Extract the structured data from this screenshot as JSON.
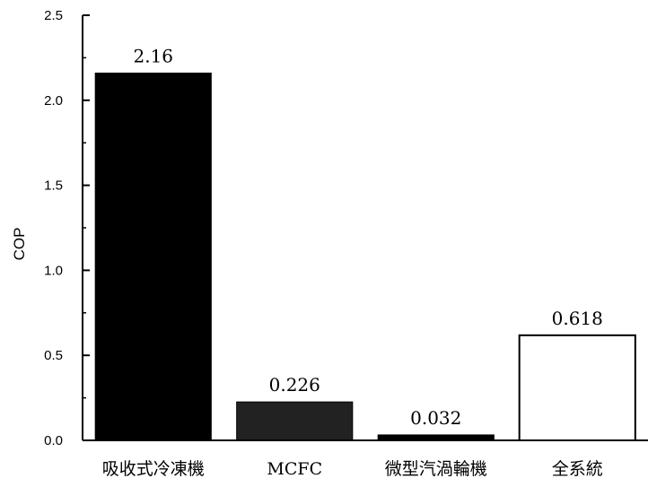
{
  "chart_data": {
    "type": "bar",
    "ylabel": "COP",
    "xlabel": "",
    "ylim": [
      0,
      2.5
    ],
    "yticks": [
      "0.0",
      "0.5",
      "1.0",
      "1.5",
      "2.0",
      "2.5"
    ],
    "categories": [
      "吸收式冷凍機",
      "MCFC",
      "微型汽渦輪機",
      "全系統"
    ],
    "values": [
      2.16,
      0.226,
      0.032,
      0.618
    ],
    "value_labels": [
      "2.16",
      "0.226",
      "0.032",
      "0.618"
    ],
    "bar_fills": [
      "#000000",
      "#222222",
      "#000000",
      "#ffffff"
    ]
  }
}
